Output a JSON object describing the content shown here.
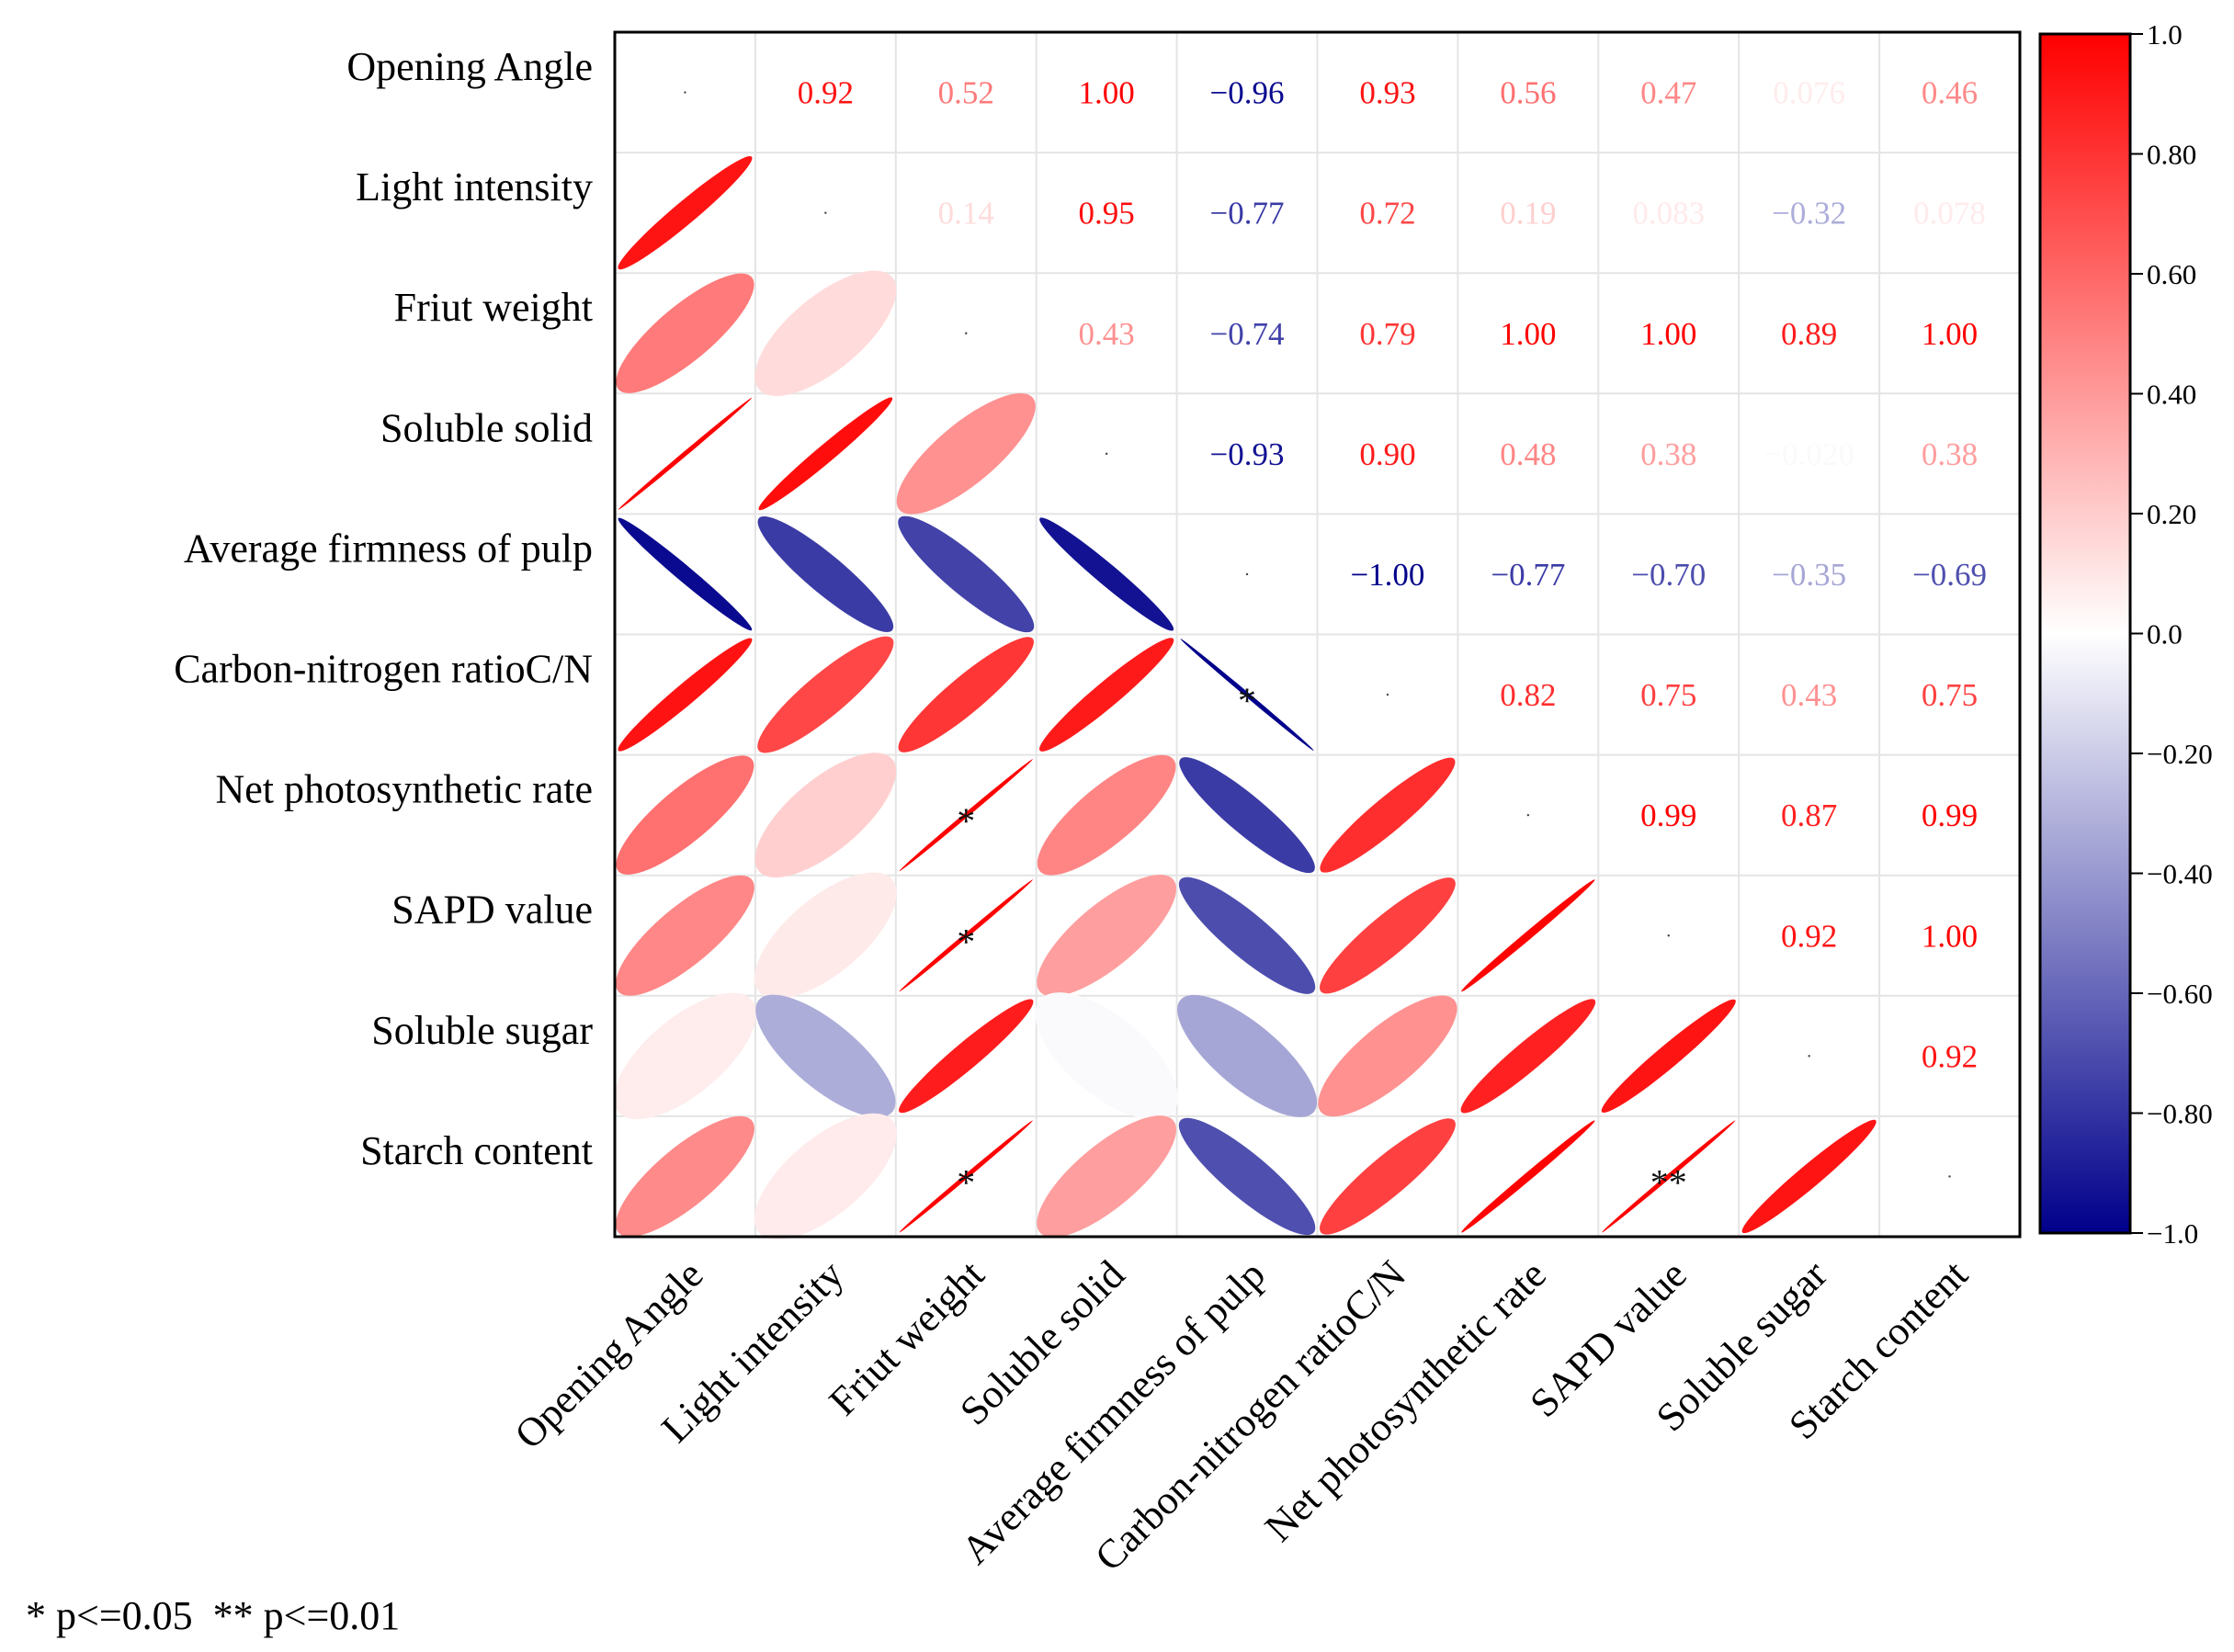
{
  "chart_data": {
    "type": "heatmap",
    "variables": [
      "Opening Angle",
      "Light intensity",
      "Friut weight",
      "Soluble solid",
      "Average firmness of pulp",
      "Carbon-nitrogen ratioC/N",
      "Net photosynthetic rate",
      "SAPD value",
      "Soluble sugar",
      "Starch content"
    ],
    "matrix": [
      [
        1.0,
        0.92,
        0.52,
        1.0,
        -0.96,
        0.93,
        0.56,
        0.47,
        0.076,
        0.46
      ],
      [
        0.92,
        1.0,
        0.14,
        0.95,
        -0.77,
        0.72,
        0.19,
        0.083,
        -0.32,
        0.078
      ],
      [
        0.52,
        0.14,
        1.0,
        0.43,
        -0.74,
        0.79,
        1.0,
        1.0,
        0.89,
        1.0
      ],
      [
        1.0,
        0.95,
        0.43,
        1.0,
        -0.93,
        0.9,
        0.48,
        0.38,
        -0.02,
        0.38
      ],
      [
        -0.96,
        -0.77,
        -0.74,
        -0.93,
        1.0,
        -1.0,
        -0.77,
        -0.7,
        -0.35,
        -0.69
      ],
      [
        0.93,
        0.72,
        0.79,
        0.9,
        -1.0,
        1.0,
        0.82,
        0.75,
        0.43,
        0.75
      ],
      [
        0.56,
        0.19,
        1.0,
        0.48,
        -0.77,
        0.82,
        1.0,
        0.99,
        0.87,
        0.99
      ],
      [
        0.47,
        0.083,
        1.0,
        0.38,
        -0.7,
        0.75,
        0.99,
        1.0,
        0.92,
        1.0
      ],
      [
        0.076,
        -0.32,
        0.89,
        -0.02,
        -0.35,
        0.43,
        0.87,
        0.92,
        1.0,
        0.92
      ],
      [
        0.46,
        0.078,
        1.0,
        0.38,
        -0.69,
        0.75,
        0.99,
        1.0,
        0.92,
        1.0
      ]
    ],
    "upper_labels": [
      [
        "",
        "0.92",
        "0.52",
        "1.00",
        "−0.96",
        "0.93",
        "0.56",
        "0.47",
        "0.076",
        "0.46"
      ],
      [
        "",
        "",
        "0.14",
        "0.95",
        "−0.77",
        "0.72",
        "0.19",
        "0.083",
        "−0.32",
        "0.078"
      ],
      [
        "",
        "",
        "",
        "0.43",
        "−0.74",
        "0.79",
        "1.00",
        "1.00",
        "0.89",
        "1.00"
      ],
      [
        "",
        "",
        "",
        "",
        "−0.93",
        "0.90",
        "0.48",
        "0.38",
        "−0.020",
        "0.38"
      ],
      [
        "",
        "",
        "",
        "",
        "",
        "−1.00",
        "−0.77",
        "−0.70",
        "−0.35",
        "−0.69"
      ],
      [
        "",
        "",
        "",
        "",
        "",
        "",
        "0.82",
        "0.75",
        "0.43",
        "0.75"
      ],
      [
        "",
        "",
        "",
        "",
        "",
        "",
        "",
        "0.99",
        "0.87",
        "0.99"
      ],
      [
        "",
        "",
        "",
        "",
        "",
        "",
        "",
        "",
        "0.92",
        "1.00"
      ],
      [
        "",
        "",
        "",
        "",
        "",
        "",
        "",
        "",
        "",
        "0.92"
      ],
      [
        "",
        "",
        "",
        "",
        "",
        "",
        "",
        "",
        "",
        ""
      ]
    ],
    "significance": [
      {
        "row": 5,
        "col": 4,
        "mark": "*"
      },
      {
        "row": 6,
        "col": 2,
        "mark": "*"
      },
      {
        "row": 7,
        "col": 2,
        "mark": "*"
      },
      {
        "row": 9,
        "col": 2,
        "mark": "*"
      },
      {
        "row": 9,
        "col": 7,
        "mark": "**"
      }
    ],
    "colorbar": {
      "range": [
        -1.0,
        1.0
      ],
      "ticks": [
        "1.0",
        "0.80",
        "0.60",
        "0.40",
        "0.20",
        "0.0",
        "−0.20",
        "−0.40",
        "−0.60",
        "−0.80",
        "−1.0"
      ],
      "colors": {
        "negative": "#00008b",
        "zero": "#ffffff",
        "positive": "#ff0000"
      }
    },
    "footnote": "* p<=0.05  ** p<=0.01"
  }
}
